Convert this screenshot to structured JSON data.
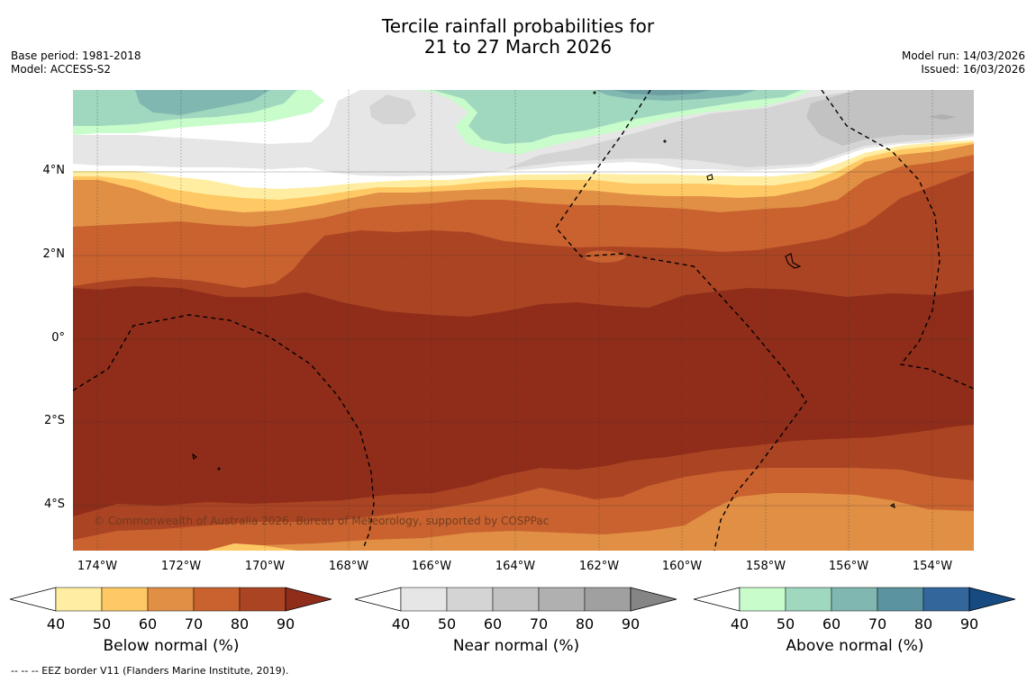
{
  "title": {
    "line1": "Tercile rainfall probabilities for",
    "line2": "21 to 27 March 2026"
  },
  "meta_left": {
    "base_period": "Base period: 1981-2018",
    "model": "Model: ACCESS-S2"
  },
  "meta_right": {
    "model_run": "Model run: 14/03/2026",
    "issued": "Issued: 16/03/2026"
  },
  "lat_labels": [
    "4°N",
    "2°N",
    "0°",
    "2°S",
    "4°S"
  ],
  "lon_labels": [
    "174°W",
    "172°W",
    "170°W",
    "168°W",
    "166°W",
    "164°W",
    "162°W",
    "160°W",
    "158°W",
    "156°W",
    "154°W"
  ],
  "copyright": "© Commonwealth of Australia 2026, Bureau of Meteorology, supported by COSPPac",
  "colorbars": [
    {
      "name": "below",
      "title": "Below normal (%)",
      "ticks": [
        "40",
        "50",
        "60",
        "70",
        "80",
        "90"
      ],
      "colors": [
        "#ffeea1",
        "#fec965",
        "#e08f45",
        "#c9622f",
        "#ab4423",
        "#8f2d1a"
      ]
    },
    {
      "name": "near",
      "title": "Near normal (%)",
      "ticks": [
        "40",
        "50",
        "60",
        "70",
        "80",
        "90"
      ],
      "colors": [
        "#e6e6e6",
        "#d4d4d4",
        "#c2c2c2",
        "#b0b0b0",
        "#a0a0a0",
        "#858585"
      ]
    },
    {
      "name": "above",
      "title": "Above normal (%)",
      "ticks": [
        "40",
        "50",
        "60",
        "70",
        "80",
        "90"
      ],
      "colors": [
        "#c8fccb",
        "#a0d7bf",
        "#80b7b0",
        "#5b93a1",
        "#33679c",
        "#164a80"
      ]
    }
  ],
  "footer": "--  --  -- EEZ border V11 (Flanders Marine Institute, 2019)."
}
